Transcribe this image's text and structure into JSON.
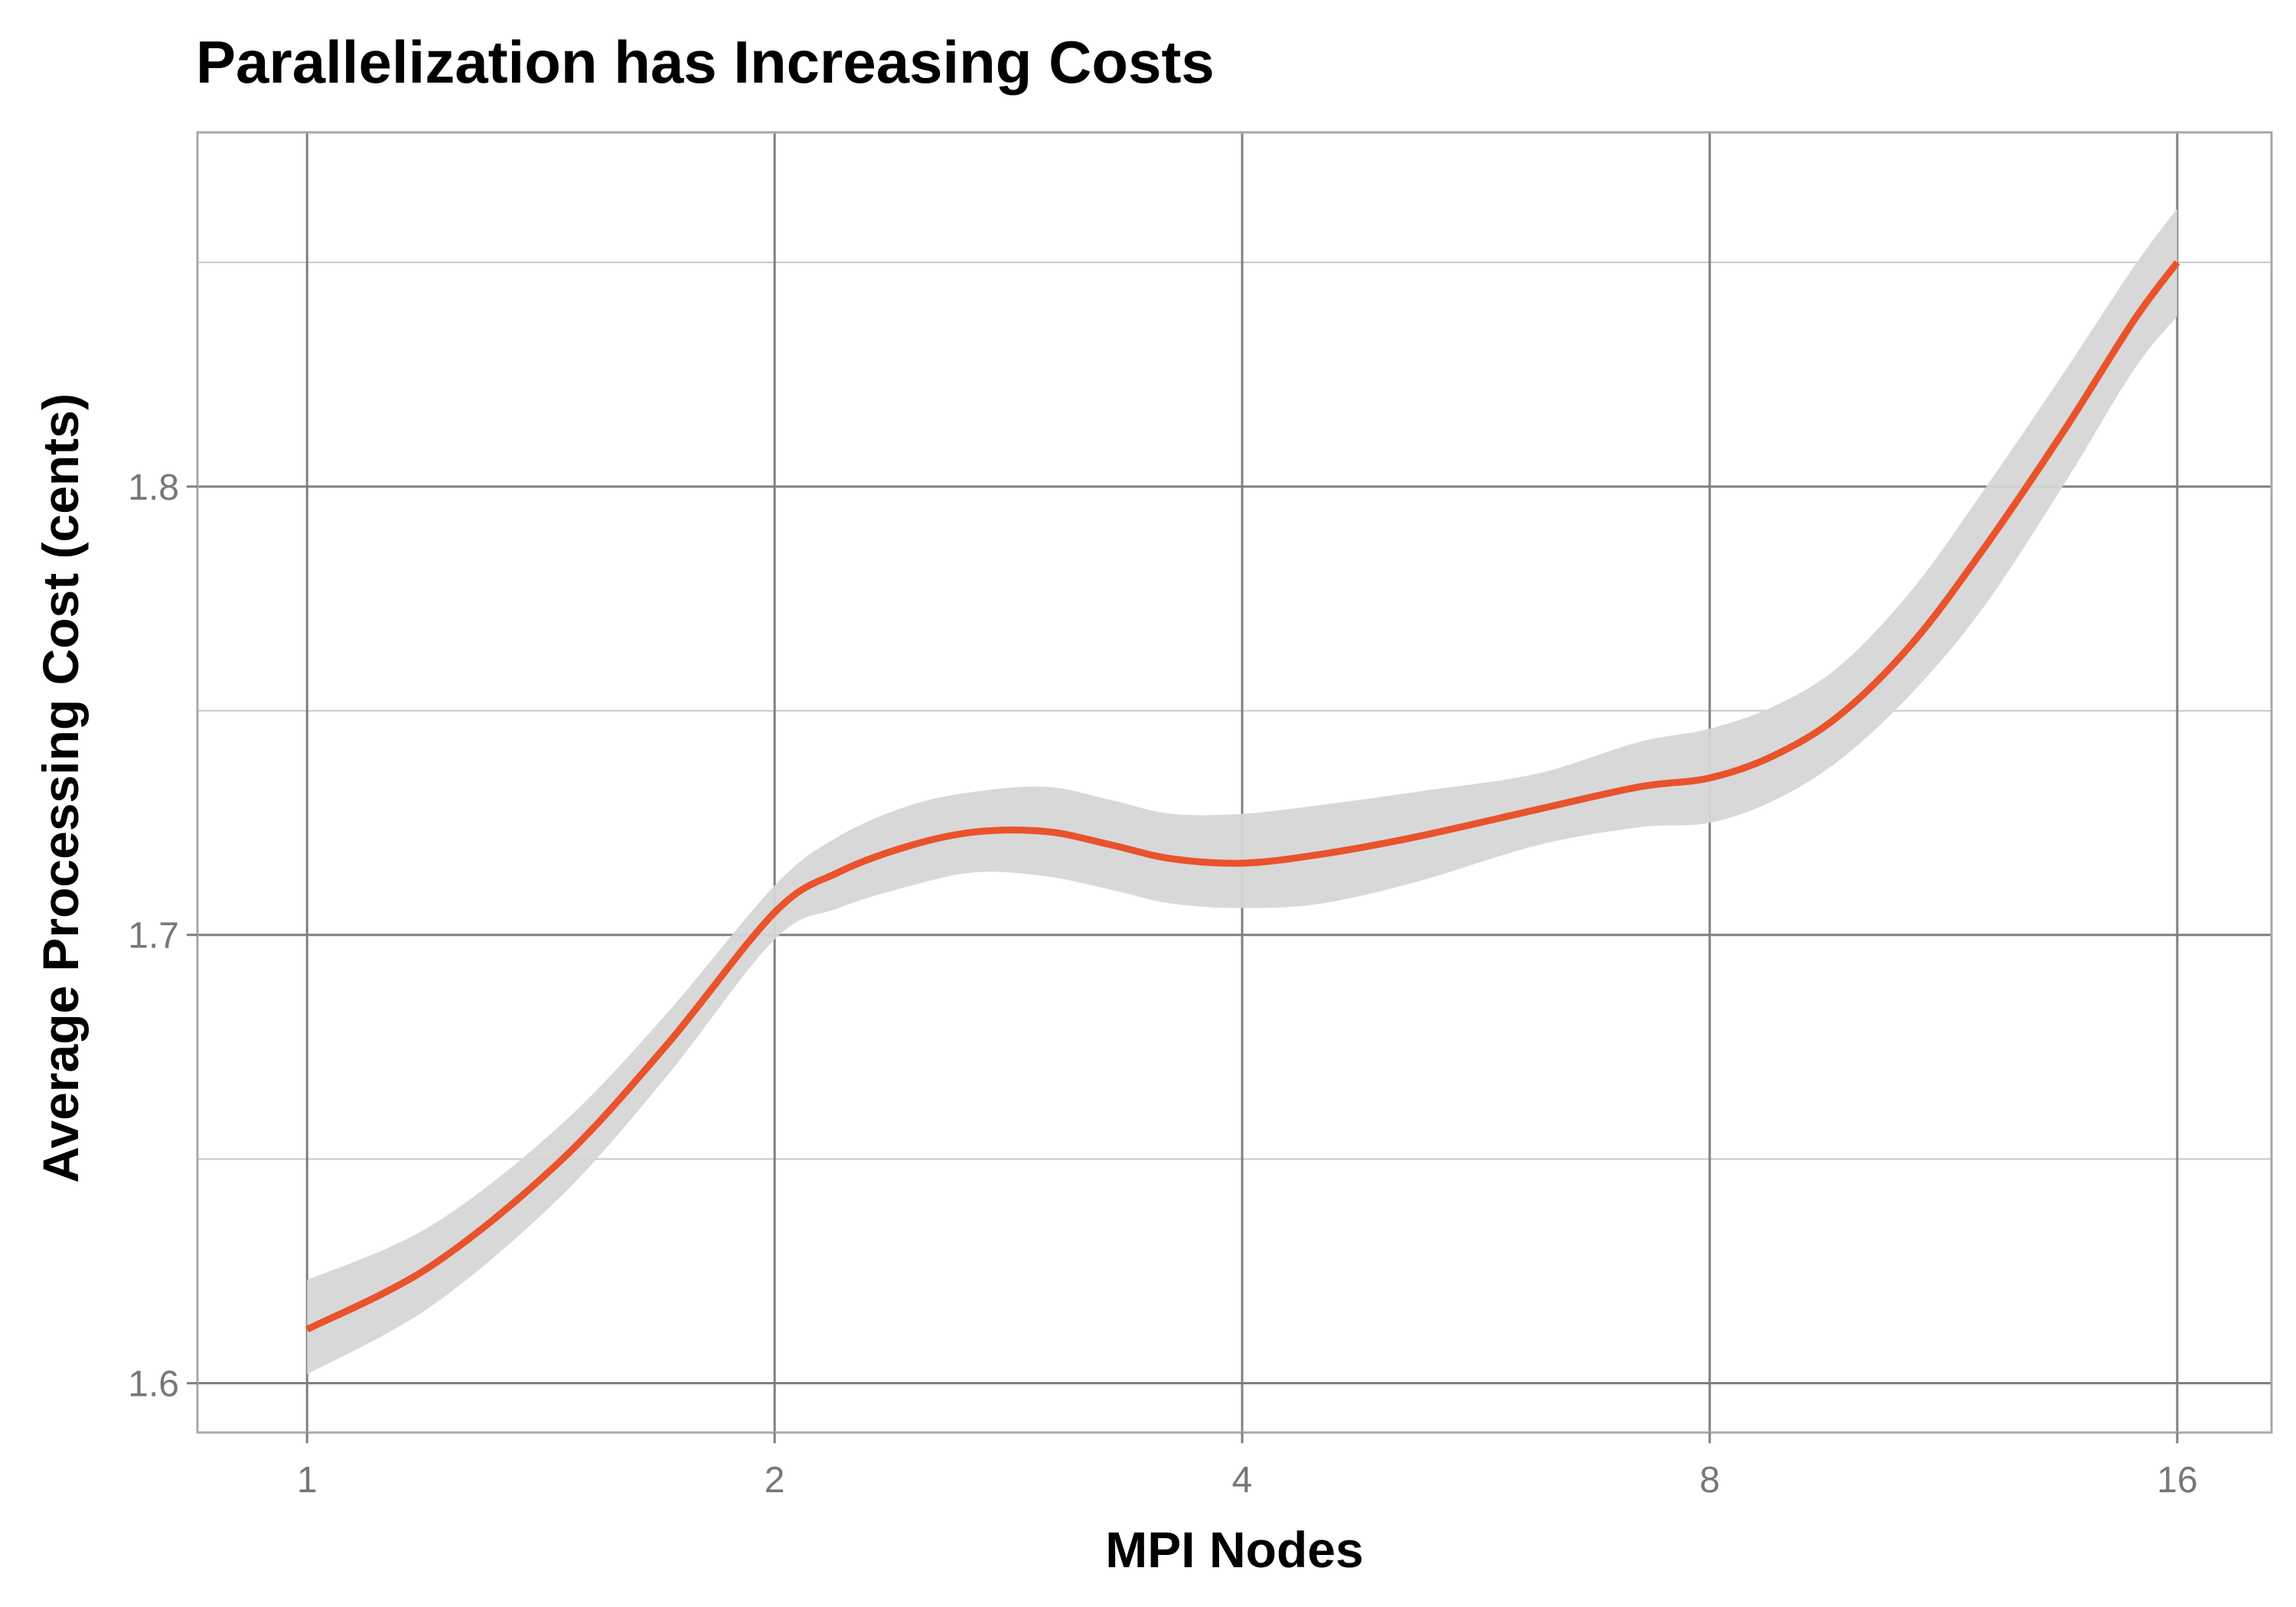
{
  "chart_data": {
    "type": "line",
    "title": "Parallelization has Increasing Costs",
    "xlabel": "MPI Nodes",
    "ylabel": "Average Processing Cost (cents)",
    "x_scale": "log2",
    "xlim": [
      0.85,
      18.4
    ],
    "ylim": [
      1.589,
      1.879
    ],
    "x_ticks": [
      1,
      2,
      4,
      8,
      16
    ],
    "x_tick_labels": [
      "1",
      "2",
      "4",
      "8",
      "16"
    ],
    "y_ticks_major": [
      1.6,
      1.7,
      1.8
    ],
    "y_tick_labels": [
      "1.6",
      "1.7",
      "1.8"
    ],
    "y_ticks_minor": [
      1.65,
      1.75,
      1.85
    ],
    "grid": true,
    "legend": "none",
    "colors": {
      "line": "#E8532B",
      "band": "#D6D6D6",
      "major_grid": "#7F7F7F",
      "minor_grid": "#C8C8C8",
      "panel_border": "#A8A8A8"
    },
    "series": [
      {
        "x": [
          1,
          1.2,
          1.45,
          1.7,
          2,
          2.2,
          2.45,
          2.7,
          3,
          3.3,
          3.6,
          4,
          4.5,
          5.2,
          6.2,
          7.2,
          8,
          8.8,
          9.7,
          10.8,
          12,
          13.5,
          15,
          16
        ],
        "y": [
          1.612,
          1.626,
          1.649,
          1.675,
          1.705,
          1.714,
          1.72,
          1.723,
          1.723,
          1.72,
          1.717,
          1.716,
          1.718,
          1.722,
          1.728,
          1.733,
          1.735,
          1.74,
          1.749,
          1.765,
          1.786,
          1.812,
          1.837,
          1.85
        ],
        "ci_lower": [
          1.602,
          1.617,
          1.641,
          1.668,
          1.699,
          1.706,
          1.711,
          1.714,
          1.713,
          1.71,
          1.707,
          1.706,
          1.707,
          1.712,
          1.72,
          1.724,
          1.725,
          1.73,
          1.739,
          1.754,
          1.773,
          1.8,
          1.826,
          1.838
        ],
        "ci_upper": [
          1.623,
          1.635,
          1.657,
          1.682,
          1.711,
          1.722,
          1.729,
          1.732,
          1.733,
          1.73,
          1.727,
          1.727,
          1.729,
          1.732,
          1.736,
          1.743,
          1.746,
          1.751,
          1.76,
          1.777,
          1.799,
          1.825,
          1.849,
          1.862
        ]
      }
    ]
  }
}
